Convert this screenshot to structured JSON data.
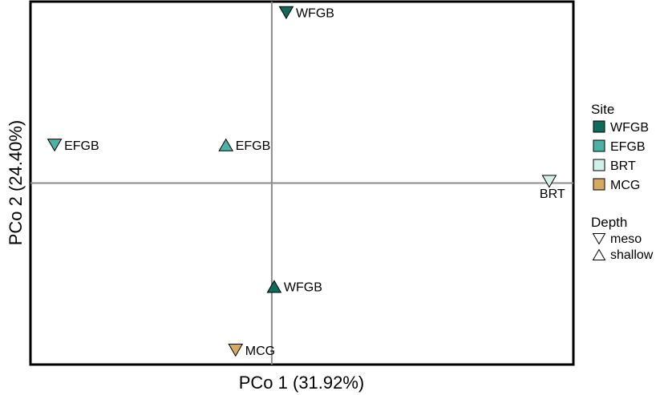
{
  "colors": {
    "WFGB": "#0f6a5c",
    "EFGB": "#4fb1a5",
    "BRT": "#d3efea",
    "MCG": "#d5ab63",
    "axis": "#000000",
    "zero_line": "#8c8c8c"
  },
  "chart_data": {
    "type": "scatter",
    "title": "",
    "xlabel": "PCo 1 (31.92%)",
    "ylabel": "PCo 2 (24.40%)",
    "xlim": [
      -1.0,
      1.25
    ],
    "ylim": [
      -1.0,
      1.0
    ],
    "grid": false,
    "zero_lines": true,
    "legend_placement": "right",
    "points": [
      {
        "label": "WFGB",
        "site": "WFGB",
        "depth": "meso",
        "x": 0.06,
        "y": 0.94
      },
      {
        "label": "EFGB",
        "site": "EFGB",
        "depth": "meso",
        "x": -0.9,
        "y": 0.21
      },
      {
        "label": "EFGB",
        "site": "EFGB",
        "depth": "shallow",
        "x": -0.19,
        "y": 0.21
      },
      {
        "label": "BRT",
        "site": "BRT",
        "depth": "meso",
        "x": 1.15,
        "y": 0.01
      },
      {
        "label": "WFGB",
        "site": "WFGB",
        "depth": "shallow",
        "x": 0.01,
        "y": -0.57
      },
      {
        "label": "MCG",
        "site": "MCG",
        "depth": "meso",
        "x": -0.15,
        "y": -0.92
      }
    ],
    "legend": {
      "site_title": "Site",
      "site_items": [
        "WFGB",
        "EFGB",
        "BRT",
        "MCG"
      ],
      "depth_title": "Depth",
      "depth_items": [
        "meso",
        "shallow"
      ]
    }
  }
}
